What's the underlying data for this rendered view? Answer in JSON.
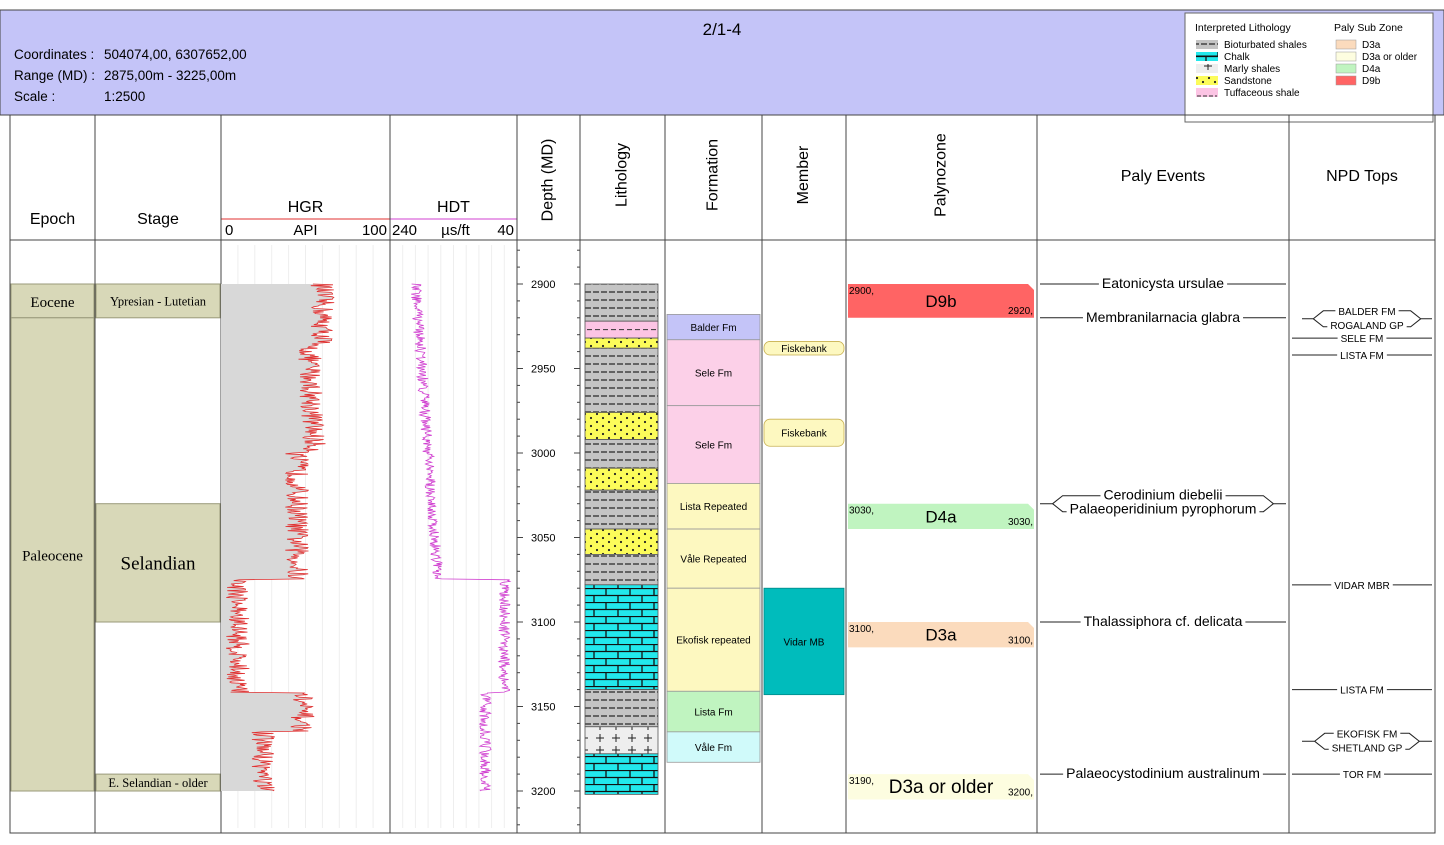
{
  "header": {
    "title": "2/1-4",
    "coords_label": "Coordinates :",
    "coords_value": "504074,00, 6307652,00",
    "range_label": "Range (MD) :",
    "range_value": "2875,00m - 3225,00m",
    "scale_label": "Scale :",
    "scale_value": "1:2500",
    "bg_color": "#c4c4f8"
  },
  "legend": {
    "lith_title": "Interpreted Lithology",
    "lith_items": [
      {
        "key": "shale",
        "label": "Bioturbated shales"
      },
      {
        "key": "chalk",
        "label": "Chalk"
      },
      {
        "key": "marly",
        "label": "Marly shales"
      },
      {
        "key": "sand",
        "label": "Sandstone"
      },
      {
        "key": "tuff",
        "label": "Tuffaceous shale"
      }
    ],
    "zone_title": "Paly Sub Zone",
    "zone_items": [
      {
        "label": "D3a",
        "color": "#fbdbbd"
      },
      {
        "label": "D3a or older",
        "color": "#fdfde0"
      },
      {
        "label": "D4a",
        "color": "#c0f4c0"
      },
      {
        "label": "D9b",
        "color": "#ff6464"
      }
    ]
  },
  "columns": {
    "epoch": "Epoch",
    "stage": "Stage",
    "hgr": "HGR",
    "hgr_min": "0",
    "hgr_unit": "API",
    "hgr_max": "100",
    "hdt": "HDT",
    "hdt_min": "240",
    "hdt_unit": "µs/ft",
    "hdt_max": "40",
    "depth": "Depth (MD)",
    "lithology": "Lithology",
    "formation": "Formation",
    "member": "Member",
    "palynozone": "Palynozone",
    "paly_events": "Paly Events",
    "npd_tops": "NPD Tops"
  },
  "depth": {
    "min": 2875,
    "max": 3225,
    "ticks": [
      2900,
      2950,
      3000,
      3050,
      3100,
      3150,
      3200
    ]
  },
  "epochs": [
    {
      "label": "Eocene",
      "top": 2900,
      "base": 2920
    },
    {
      "label": "Paleocene",
      "top": 2920,
      "base": 3200
    }
  ],
  "stages": [
    {
      "label": "Ypresian - Lutetian",
      "top": 2900,
      "base": 2920,
      "size": "small"
    },
    {
      "label": "Selandian",
      "top": 3030,
      "base": 3100,
      "size": "large"
    },
    {
      "label": "E. Selandian - older",
      "top": 3190,
      "base": 3200,
      "size": "small"
    }
  ],
  "lithology": [
    {
      "type": "shale",
      "top": 2900,
      "base": 2922
    },
    {
      "type": "tuff",
      "top": 2922,
      "base": 2932
    },
    {
      "type": "sand",
      "top": 2932,
      "base": 2938
    },
    {
      "type": "shale",
      "top": 2938,
      "base": 2976
    },
    {
      "type": "sand",
      "top": 2976,
      "base": 2992
    },
    {
      "type": "shale",
      "top": 2992,
      "base": 3009
    },
    {
      "type": "sand",
      "top": 3009,
      "base": 3022
    },
    {
      "type": "shale",
      "top": 3022,
      "base": 3045
    },
    {
      "type": "sand",
      "top": 3045,
      "base": 3060
    },
    {
      "type": "shale",
      "top": 3060,
      "base": 3078
    },
    {
      "type": "chalk",
      "top": 3078,
      "base": 3140
    },
    {
      "type": "shale",
      "top": 3140,
      "base": 3162
    },
    {
      "type": "marly",
      "top": 3162,
      "base": 3178
    },
    {
      "type": "chalk",
      "top": 3178,
      "base": 3202
    }
  ],
  "formations": [
    {
      "label": "Balder Fm",
      "top": 2918,
      "base": 2933,
      "color": "#c4c4f8"
    },
    {
      "label": "Sele Fm",
      "top": 2933,
      "base": 2972,
      "color": "#fcd0e8"
    },
    {
      "label": "Sele Fm",
      "top": 2972,
      "base": 3018,
      "color": "#fcd0e8"
    },
    {
      "label": "Lista Repeated",
      "top": 3018,
      "base": 3045,
      "color": "#fdf8c0"
    },
    {
      "label": "Våle Repeated",
      "top": 3045,
      "base": 3080,
      "color": "#fdf8c0"
    },
    {
      "label": "Ekofisk repeated",
      "top": 3080,
      "base": 3141,
      "color": "#fdf8c0"
    },
    {
      "label": "Lista Fm",
      "top": 3141,
      "base": 3165,
      "color": "#c0f4c0"
    },
    {
      "label": "Våle Fm",
      "top": 3165,
      "base": 3183,
      "color": "#d0fafa"
    }
  ],
  "members": [
    {
      "label": "Fiskebank",
      "top": 2934,
      "base": 2942,
      "color": "#fdf8c0"
    },
    {
      "label": "Fiskebank",
      "top": 2980,
      "base": 2996,
      "color": "#fdf8c0"
    },
    {
      "label": "Vidar MB",
      "top": 3080,
      "base": 3143,
      "color": "#00bcbc"
    }
  ],
  "palynozones": [
    {
      "label": "D9b",
      "top_label": "2900,",
      "base_label": "2920,",
      "top": 2900,
      "base": 2920,
      "color": "#ff6464",
      "size": "medium"
    },
    {
      "label": "D4a",
      "top_label": "3030,",
      "base_label": "3030,",
      "top": 3030,
      "base": 3045,
      "color": "#c0f4c0",
      "size": "medium"
    },
    {
      "label": "D3a",
      "top_label": "3100,",
      "base_label": "3100,",
      "top": 3100,
      "base": 3115,
      "color": "#fbdbbd",
      "size": "medium"
    },
    {
      "label": "D3a or older",
      "top_label": "3190,",
      "base_label": "3200,",
      "top": 3190,
      "base": 3205,
      "color": "#fdfde0",
      "size": "large"
    }
  ],
  "paly_events": [
    {
      "label": "Eatonicysta ursulae",
      "depth": 2900,
      "group": "single"
    },
    {
      "label": "Membranilarnacia glabra",
      "depth": 2920,
      "group": "single"
    },
    {
      "label": "Cerodinium diebelii",
      "depth": 3030,
      "group": "pair-top"
    },
    {
      "label": "Palaeoperidinium pyrophorum",
      "depth": 3030,
      "group": "pair-bottom"
    },
    {
      "label": "Thalassiphora cf. delicata",
      "depth": 3100,
      "group": "single"
    },
    {
      "label": "Palaeocystodinium australinum",
      "depth": 3190,
      "group": "single"
    }
  ],
  "npd_tops": [
    {
      "label": "BALDER FM",
      "depth": 2920,
      "group": "pair-top"
    },
    {
      "label": "ROGALAND GP",
      "depth": 2920,
      "group": "pair-bottom"
    },
    {
      "label": "SELE FM",
      "depth": 2932,
      "group": "single"
    },
    {
      "label": "LISTA FM",
      "depth": 2942,
      "group": "single"
    },
    {
      "label": "VIDAR MBR",
      "depth": 3078,
      "group": "single"
    },
    {
      "label": "LISTA FM",
      "depth": 3140,
      "group": "single"
    },
    {
      "label": "EKOFISK FM",
      "depth": 3170,
      "group": "pair-top"
    },
    {
      "label": "SHETLAND GP",
      "depth": 3170,
      "group": "pair-bottom"
    },
    {
      "label": "TOR FM",
      "depth": 3190,
      "group": "single"
    }
  ],
  "curves": {
    "hgr_color": "#e03030",
    "hdt_color": "#d040d0",
    "fill_color": "#d8d8d8",
    "stage_color": "#d8d8b8"
  }
}
